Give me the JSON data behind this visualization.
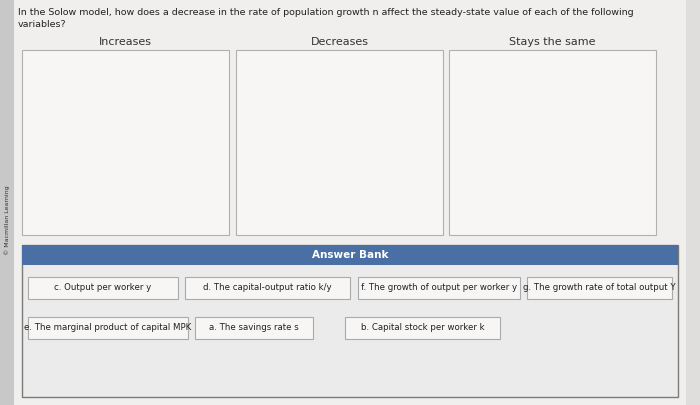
{
  "title_line1": "In the Solow model, how does a decrease in the rate of population growth n affect the steady-state value of each of the following",
  "title_line2": "variables?",
  "page_bg": "#e0dedd",
  "main_bg": "#f0efee",
  "col_headers": [
    "Increases",
    "Decreases",
    "Stays the same"
  ],
  "answer_bank_header": "Answer Bank",
  "answer_bank_bg": "#4a6fa5",
  "answer_bank_header_color": "#ffffff",
  "answer_items_row1": [
    "c. Output per worker y",
    "d. The capital-output ratio k/y",
    "f. The growth of output per worker y",
    "g. The growth rate of total output Y"
  ],
  "answer_items_row2": [
    "e. The marginal product of capital MPK",
    "a. The savings rate s",
    "b. Capital stock per worker k"
  ],
  "box_bg": "#f7f6f5",
  "box_border": "#b0b0b0",
  "item_box_bg": "#f7f6f5",
  "item_box_border": "#aaaaaa",
  "text_color": "#222222",
  "header_text_color": "#333333",
  "sidebar_text": "© Macmillan Learning",
  "sidebar_bg": "#c8c8c8"
}
